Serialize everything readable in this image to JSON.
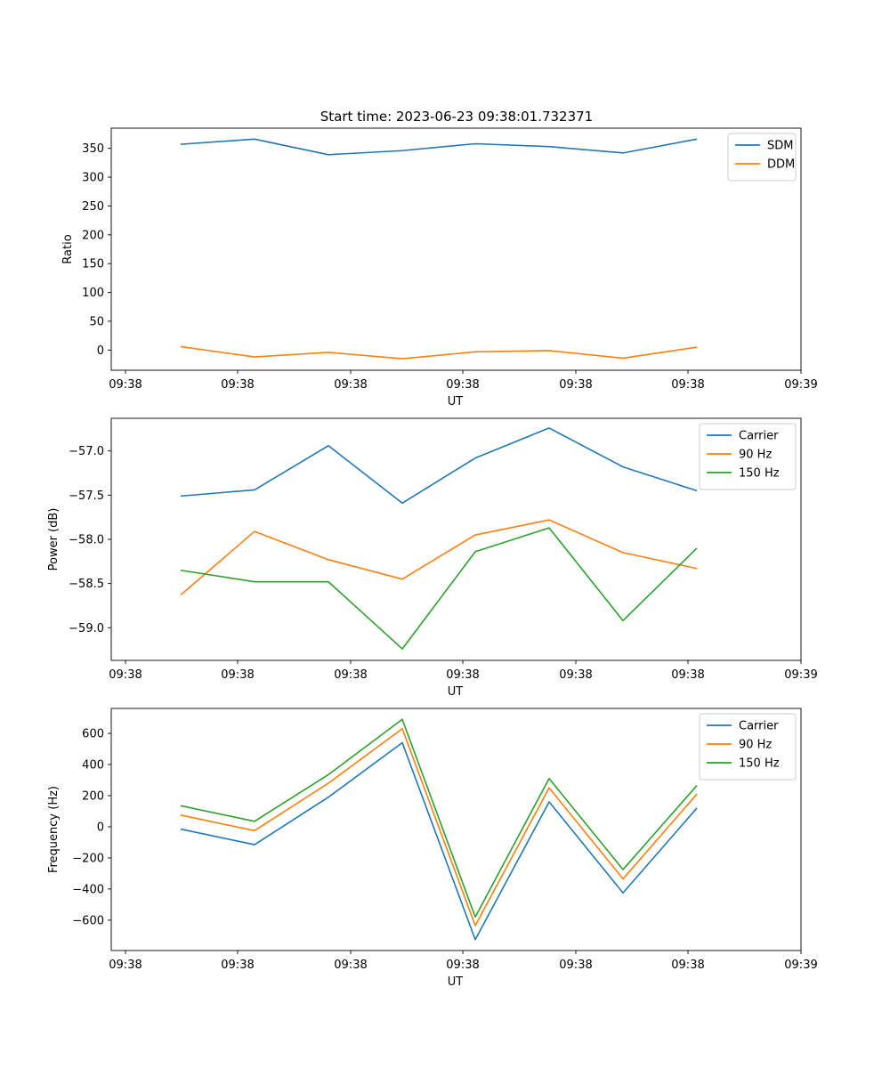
{
  "figure": {
    "title": "Start time: 2023-06-23 09:38:01.732371"
  },
  "chart_data": [
    {
      "type": "line",
      "xlabel": "UT",
      "ylabel": "Ratio",
      "x_ticks": [
        "09:38",
        "09:38",
        "09:38",
        "09:38",
        "09:38",
        "09:38",
        "09:39"
      ],
      "y_ticks": [
        0,
        50,
        100,
        150,
        200,
        250,
        300,
        350
      ],
      "ylim": [
        -35,
        385
      ],
      "grid": false,
      "legend": "top-right",
      "series": [
        {
          "name": "SDM",
          "color": "#1f77b4",
          "values": [
            357,
            366,
            339,
            346,
            358,
            353,
            342,
            366
          ]
        },
        {
          "name": "DDM",
          "color": "#ff7f0e",
          "values": [
            6,
            -12,
            -4,
            -15,
            -3,
            -1,
            -14,
            5
          ]
        }
      ]
    },
    {
      "type": "line",
      "xlabel": "UT",
      "ylabel": "Power (dB)",
      "x_ticks": [
        "09:38",
        "09:38",
        "09:38",
        "09:38",
        "09:38",
        "09:38",
        "09:39"
      ],
      "y_ticks": [
        "−59.0",
        "−58.5",
        "−58.0",
        "−57.5",
        "−57.0"
      ],
      "y_tick_values": [
        -59.0,
        -58.5,
        -58.0,
        -57.5,
        -57.0
      ],
      "ylim": [
        -59.37,
        -56.63
      ],
      "grid": false,
      "legend": "top-right",
      "series": [
        {
          "name": "Carrier",
          "color": "#1f77b4",
          "values": [
            -57.51,
            -57.44,
            -56.94,
            -57.59,
            -57.08,
            -56.74,
            -57.18,
            -57.45
          ]
        },
        {
          "name": "90 Hz",
          "color": "#ff7f0e",
          "values": [
            -58.63,
            -57.91,
            -58.23,
            -58.45,
            -57.95,
            -57.78,
            -58.15,
            -58.33
          ]
        },
        {
          "name": "150 Hz",
          "color": "#2ca02c",
          "values": [
            -58.35,
            -58.48,
            -58.48,
            -59.24,
            -58.14,
            -57.87,
            -58.92,
            -58.1
          ]
        }
      ]
    },
    {
      "type": "line",
      "xlabel": "UT",
      "ylabel": "Frequency (Hz)",
      "x_ticks": [
        "09:38",
        "09:38",
        "09:38",
        "09:38",
        "09:38",
        "09:38",
        "09:39"
      ],
      "y_ticks": [
        "−600",
        "−400",
        "−200",
        "0",
        "200",
        "400",
        "600"
      ],
      "y_tick_values": [
        -600,
        -400,
        -200,
        0,
        200,
        400,
        600
      ],
      "ylim": [
        -795,
        760
      ],
      "grid": false,
      "legend": "top-right",
      "series": [
        {
          "name": "Carrier",
          "color": "#1f77b4",
          "values": [
            -15,
            -115,
            190,
            540,
            -725,
            160,
            -425,
            120
          ]
        },
        {
          "name": "90 Hz",
          "color": "#ff7f0e",
          "values": [
            75,
            -25,
            280,
            630,
            -635,
            250,
            -335,
            210
          ]
        },
        {
          "name": "150 Hz",
          "color": "#2ca02c",
          "values": [
            135,
            35,
            335,
            690,
            -580,
            310,
            -275,
            265
          ]
        }
      ]
    }
  ]
}
